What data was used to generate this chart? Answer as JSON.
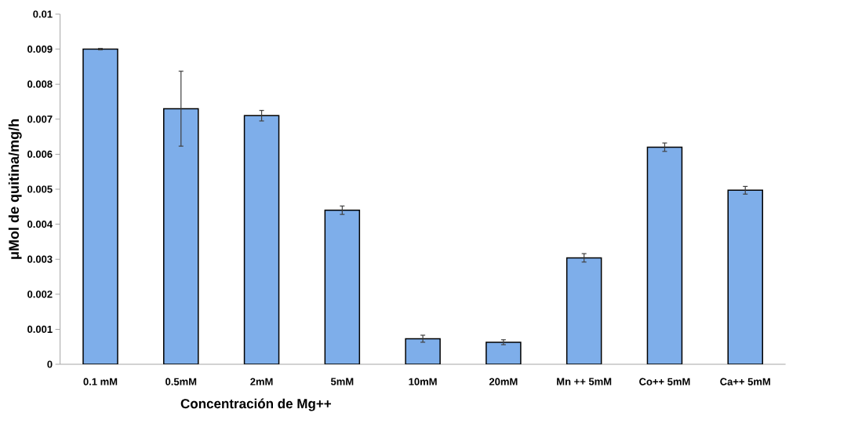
{
  "chart_data": {
    "type": "bar",
    "xlabel": "Concentración de Mg++",
    "ylabel": "μMol de quitina/mg/h",
    "categories": [
      "0.1 mM",
      "0.5mM",
      "2mM",
      "5mM",
      "10mM",
      "20mM",
      "Mn ++ 5mM",
      "Co++ 5mM",
      "Ca++ 5mM"
    ],
    "values": [
      0.009,
      0.0073,
      0.0071,
      0.0044,
      0.00073,
      0.00063,
      0.00304,
      0.0062,
      0.00497
    ],
    "errors": [
      2e-05,
      0.00107,
      0.00015,
      0.00012,
      0.0001,
      7e-05,
      0.00012,
      0.00012,
      0.00011
    ],
    "color": "#7eaeea",
    "ylim": [
      0,
      0.01
    ],
    "yticks": [
      0,
      0.001,
      0.002,
      0.003,
      0.004,
      0.005,
      0.006,
      0.007,
      0.008,
      0.009,
      0.01
    ]
  }
}
